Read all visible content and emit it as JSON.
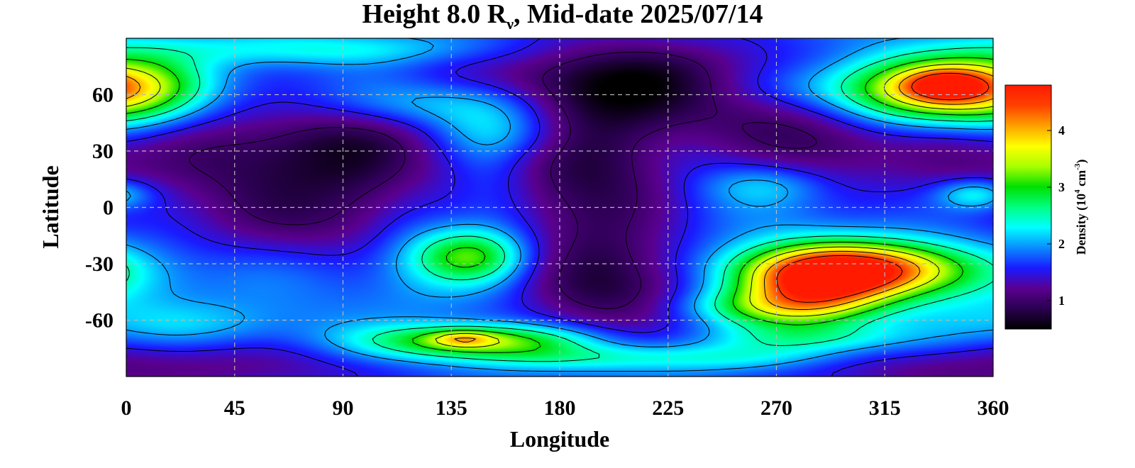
{
  "chart_data": {
    "type": "heatmap",
    "title": {
      "prefix": "Height 8.0 R",
      "subscript": "ν",
      "suffix": ", Mid-date 2025/07/14"
    },
    "xlabel": "Longitude",
    "ylabel": "Latitude",
    "xlim": [
      0,
      360
    ],
    "ylim": [
      -90,
      90
    ],
    "x_ticks": [
      "0",
      "45",
      "90",
      "135",
      "180",
      "225",
      "270",
      "315",
      "360"
    ],
    "x_tick_values": [
      0,
      45,
      90,
      135,
      180,
      225,
      270,
      315,
      360
    ],
    "y_ticks": [
      "60",
      "30",
      "0",
      "-30",
      "-60"
    ],
    "y_tick_values": [
      60,
      30,
      0,
      -30,
      -60
    ],
    "grid": true,
    "grid_style": "dashed",
    "contours": true,
    "colorbar": {
      "label": "Density (10⁴ cm⁻³)",
      "label_parts": {
        "pre": "Density (10",
        "sup1": "4",
        "mid": " cm",
        "sup2": "-3",
        "post": ")"
      },
      "range": [
        0.5,
        4.8
      ],
      "ticks": [
        "1",
        "2",
        "3",
        "4"
      ],
      "tick_values": [
        1,
        2,
        3,
        4
      ],
      "colormap": [
        "#000000",
        "#2a0050",
        "#5a0090",
        "#1a1aff",
        "#0a8cff",
        "#00ffff",
        "#00ff80",
        "#00e000",
        "#aaff00",
        "#ffff00",
        "#ffa000",
        "#ff4000",
        "#ff1a00"
      ],
      "placement": "right"
    },
    "field": {
      "base": 1.85,
      "features": [
        {
          "lon": 100,
          "lat": 20,
          "sx": 55,
          "sy": 22,
          "a": -0.95
        },
        {
          "lon": 85,
          "lat": 40,
          "sx": 30,
          "sy": 18,
          "a": -0.35
        },
        {
          "lon": 75,
          "lat": -10,
          "sx": 40,
          "sy": 14,
          "a": -0.45
        },
        {
          "lon": 30,
          "lat": 28,
          "sx": 25,
          "sy": 20,
          "a": -0.35
        },
        {
          "lon": 215,
          "lat": 65,
          "sx": 55,
          "sy": 18,
          "a": -1.15
        },
        {
          "lon": 195,
          "lat": 10,
          "sx": 25,
          "sy": 40,
          "a": -0.85
        },
        {
          "lon": 205,
          "lat": -45,
          "sx": 28,
          "sy": 18,
          "a": -0.75
        },
        {
          "lon": 290,
          "lat": 35,
          "sx": 30,
          "sy": 18,
          "a": -0.85
        },
        {
          "lon": 345,
          "lat": 20,
          "sx": 20,
          "sy": 20,
          "a": -0.4
        },
        {
          "lon": 330,
          "lat": -85,
          "sx": 45,
          "sy": 12,
          "a": -0.6
        },
        {
          "lon": 60,
          "lat": -85,
          "sx": 50,
          "sy": 10,
          "a": -0.5
        },
        {
          "lon": 5,
          "lat": 63,
          "sx": 20,
          "sy": 13,
          "a": 1.25
        },
        {
          "lon": 80,
          "lat": 84,
          "sx": 50,
          "sy": 6,
          "a": 0.55
        },
        {
          "lon": 130,
          "lat": 55,
          "sx": 35,
          "sy": 9,
          "a": 0.7
        },
        {
          "lon": 160,
          "lat": 40,
          "sx": 22,
          "sy": 10,
          "a": 0.55
        },
        {
          "lon": 150,
          "lat": 18,
          "sx": 16,
          "sy": 26,
          "a": 0.55
        },
        {
          "lon": 143,
          "lat": -26,
          "sx": 16,
          "sy": 10,
          "a": 1.3
        },
        {
          "lon": 120,
          "lat": -5,
          "sx": 15,
          "sy": 25,
          "a": 0.35
        },
        {
          "lon": 330,
          "lat": 62,
          "sx": 28,
          "sy": 13,
          "a": 2.0
        },
        {
          "lon": 340,
          "lat": 65,
          "sx": 12,
          "sy": 6,
          "a": 1.3
        },
        {
          "lon": 275,
          "lat": 63,
          "sx": 30,
          "sy": 10,
          "a": 0.45
        },
        {
          "lon": 265,
          "lat": 12,
          "sx": 18,
          "sy": 8,
          "a": 0.5
        },
        {
          "lon": 353,
          "lat": 7,
          "sx": 12,
          "sy": 6,
          "a": 0.9
        },
        {
          "lon": 305,
          "lat": -33,
          "sx": 32,
          "sy": 10,
          "a": 2.6
        },
        {
          "lon": 285,
          "lat": -43,
          "sx": 22,
          "sy": 13,
          "a": 1.9
        },
        {
          "lon": 265,
          "lat": -53,
          "sx": 25,
          "sy": 7,
          "a": 0.85
        },
        {
          "lon": 145,
          "lat": -71,
          "sx": 32,
          "sy": 6,
          "a": 1.6
        },
        {
          "lon": 140,
          "lat": -70,
          "sx": 9,
          "sy": 3,
          "a": 0.8
        },
        {
          "lon": 210,
          "lat": -80,
          "sx": 60,
          "sy": 5,
          "a": 0.7
        },
        {
          "lon": 290,
          "lat": -70,
          "sx": 30,
          "sy": 6,
          "a": 0.7
        },
        {
          "lon": 25,
          "lat": -62,
          "sx": 30,
          "sy": 8,
          "a": 0.3
        },
        {
          "lon": 350,
          "lat": -45,
          "sx": 25,
          "sy": 15,
          "a": 0.2
        }
      ]
    }
  }
}
